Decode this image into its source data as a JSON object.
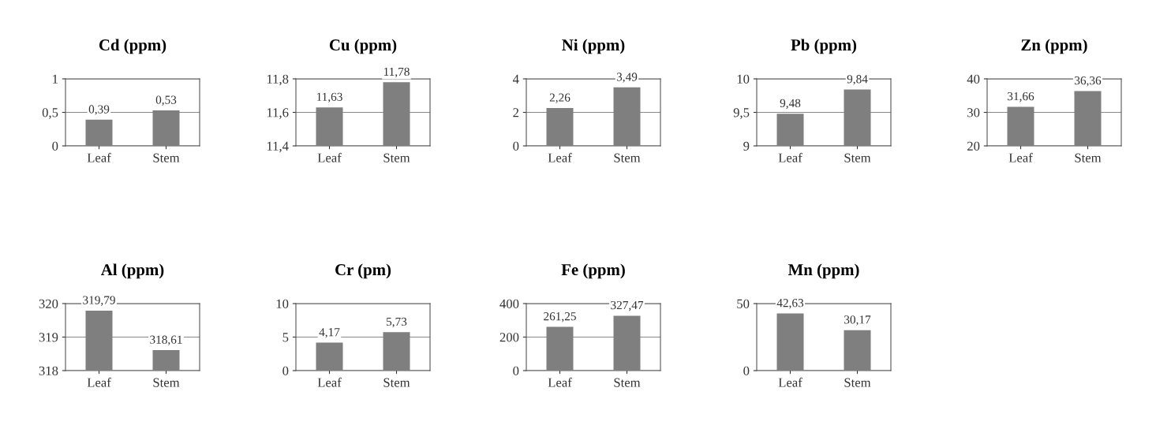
{
  "chart_data": [
    {
      "type": "bar",
      "title": "Cd (ppm)",
      "categories": [
        "Leaf",
        "Stem"
      ],
      "values": [
        0.39,
        0.53
      ],
      "value_labels": [
        "0,39",
        "0,53"
      ],
      "color": "#7f7f7f",
      "ylim": [
        0,
        1
      ],
      "yticks": [
        0,
        {
          "value": 0.5,
          "label": "0,5"
        },
        1
      ],
      "grid": "y"
    },
    {
      "type": "bar",
      "title": "Cu (ppm)",
      "categories": [
        "Leaf",
        "Stem"
      ],
      "values": [
        11.63,
        11.78
      ],
      "value_labels": [
        "11,63",
        "11,78"
      ],
      "color": "#7f7f7f",
      "ylim": [
        11.4,
        11.8
      ],
      "yticks": [
        {
          "value": 11.4,
          "label": "11,4"
        },
        {
          "value": 11.6,
          "label": "11,6"
        },
        {
          "value": 11.8,
          "label": "11,8"
        }
      ],
      "grid": "y"
    },
    {
      "type": "bar",
      "title": "Ni (ppm)",
      "categories": [
        "Leaf",
        "Stem"
      ],
      "values": [
        2.26,
        3.49
      ],
      "value_labels": [
        "2,26",
        "3,49"
      ],
      "color": "#7f7f7f",
      "ylim": [
        0,
        4
      ],
      "yticks": [
        0,
        2,
        4
      ],
      "grid": "y"
    },
    {
      "type": "bar",
      "title": "Pb (ppm)",
      "categories": [
        "Leaf",
        "Stem"
      ],
      "values": [
        9.48,
        9.84
      ],
      "value_labels": [
        "9,48",
        "9,84"
      ],
      "color": "#7f7f7f",
      "ylim": [
        9,
        10
      ],
      "yticks": [
        9,
        {
          "value": 9.5,
          "label": "9,5"
        },
        10
      ],
      "grid": "y"
    },
    {
      "type": "bar",
      "title": "Zn (ppm)",
      "categories": [
        "Leaf",
        "Stem"
      ],
      "values": [
        31.66,
        36.36
      ],
      "value_labels": [
        "31,66",
        "36,36"
      ],
      "color": "#7f7f7f",
      "ylim": [
        20,
        40
      ],
      "yticks": [
        20,
        30,
        40
      ],
      "grid": "y"
    },
    {
      "type": "bar",
      "title": "Al (ppm)",
      "categories": [
        "Leaf",
        "Stem"
      ],
      "values": [
        319.79,
        318.61
      ],
      "value_labels": [
        "319,79",
        "318,61"
      ],
      "color": "#7f7f7f",
      "ylim": [
        318,
        320
      ],
      "yticks": [
        318,
        319,
        320
      ],
      "grid": "y"
    },
    {
      "type": "bar",
      "title": "Cr (pm)",
      "categories": [
        "Leaf",
        "Stem"
      ],
      "values": [
        4.17,
        5.73
      ],
      "value_labels": [
        "4,17",
        "5,73"
      ],
      "color": "#7f7f7f",
      "ylim": [
        0,
        10
      ],
      "yticks": [
        0,
        5,
        10
      ],
      "grid": "y"
    },
    {
      "type": "bar",
      "title": "Fe (ppm)",
      "categories": [
        "Leaf",
        "Stem"
      ],
      "values": [
        261.25,
        327.47
      ],
      "value_labels": [
        "261,25",
        "327,47"
      ],
      "color": "#7f7f7f",
      "ylim": [
        0,
        400
      ],
      "yticks": [
        0,
        200,
        400
      ],
      "grid": "y"
    },
    {
      "type": "bar",
      "title": "Mn (ppm)",
      "categories": [
        "Leaf",
        "Stem"
      ],
      "values": [
        42.63,
        30.17
      ],
      "value_labels": [
        "42,63",
        "30,17"
      ],
      "color": "#7f7f7f",
      "ylim": [
        0,
        50
      ],
      "yticks": [
        0,
        50
      ],
      "grid": "y"
    }
  ]
}
